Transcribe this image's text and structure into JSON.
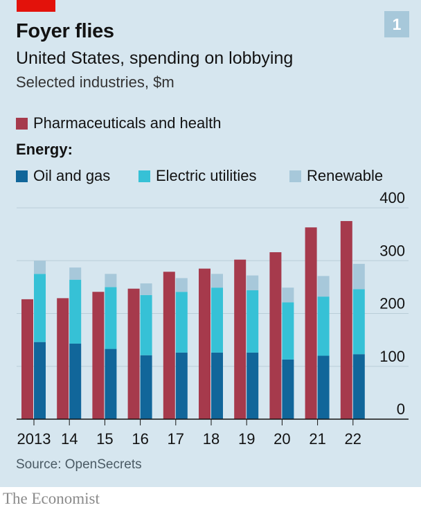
{
  "header": {
    "badge": "1",
    "title": "Foyer flies",
    "subtitle": "United States, spending on lobbying",
    "unit_line": "Selected industries, $m"
  },
  "legend": {
    "pharma_label": "Pharmaceuticals and health",
    "energy_heading": "Energy:",
    "oil_label": "Oil and gas",
    "electric_label": "Electric utilities",
    "renewable_label": "Renewable"
  },
  "colors": {
    "pharma": "#a63a4c",
    "oil": "#11669a",
    "electric": "#36c1d6",
    "renewable": "#a7c8da"
  },
  "chart_data": {
    "type": "bar",
    "categories": [
      "2013",
      "14",
      "15",
      "16",
      "17",
      "18",
      "19",
      "20",
      "21",
      "22"
    ],
    "series": [
      {
        "name": "Pharmaceuticals and health",
        "values": [
          227,
          229,
          241,
          247,
          279,
          285,
          302,
          316,
          363,
          375
        ]
      },
      {
        "name": "Oil and gas",
        "values": [
          146,
          143,
          133,
          121,
          126,
          126,
          126,
          113,
          120,
          123
        ]
      },
      {
        "name": "Electric utilities",
        "values": [
          129,
          121,
          117,
          114,
          115,
          123,
          118,
          108,
          112,
          123
        ]
      },
      {
        "name": "Renewable",
        "values": [
          25,
          23,
          25,
          22,
          26,
          26,
          28,
          28,
          39,
          48
        ]
      }
    ],
    "stacked_group": [
      "Oil and gas",
      "Electric utilities",
      "Renewable"
    ],
    "ylim": [
      0,
      400
    ],
    "yticks": [
      "0",
      "100",
      "200",
      "300",
      "400"
    ],
    "grid": true
  },
  "footer": {
    "source": "Source: OpenSecrets",
    "brand": "The Economist"
  }
}
